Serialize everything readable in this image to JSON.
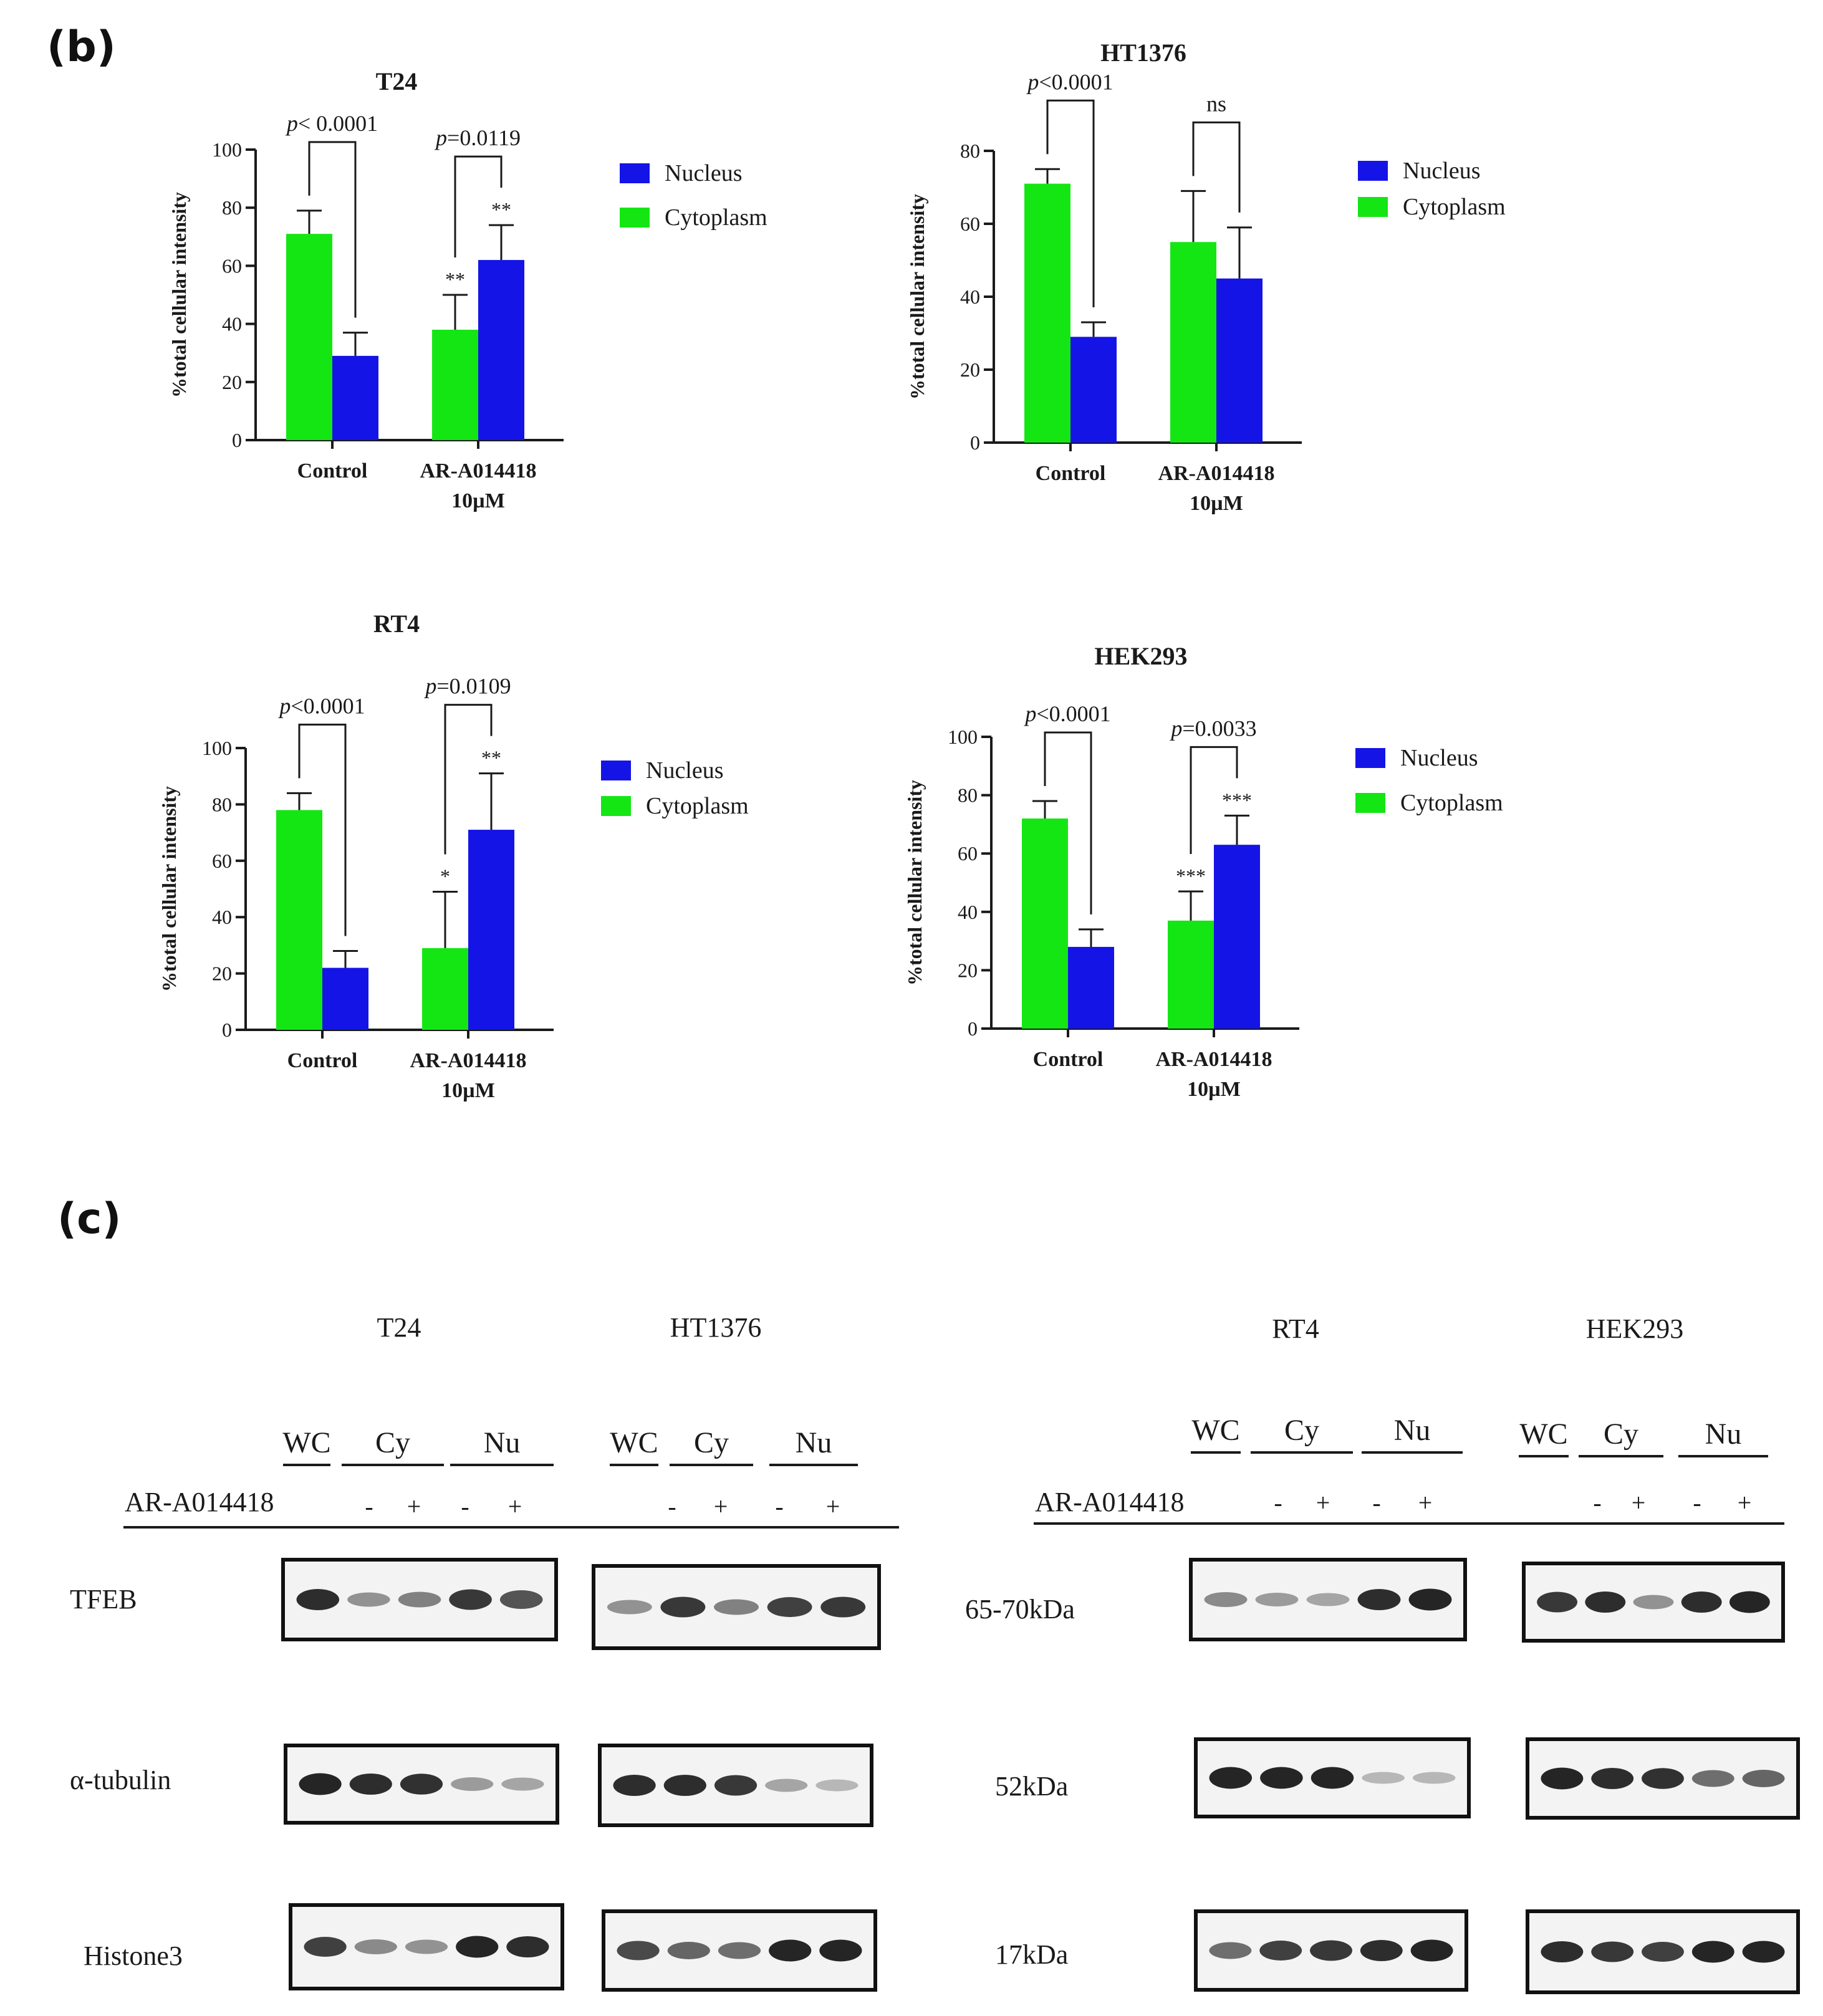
{
  "panels": {
    "b": "(b)",
    "c": "(c)"
  },
  "colors": {
    "nucleus": "#1414e6",
    "cytoplasm": "#14e614",
    "axis": "#1a1a1a",
    "blot_bg": "#f3f3f3",
    "band": "#1c1c1c"
  },
  "chart_data": [
    {
      "type": "bar",
      "title": "T24",
      "ylabel": "%total cellular intensity",
      "ylim": [
        0,
        100
      ],
      "yticks": [
        0,
        20,
        40,
        60,
        80,
        100
      ],
      "categories": [
        "Control",
        "AR-A014418\n10µM"
      ],
      "series": [
        {
          "name": "Cytoplasm",
          "values": [
            71,
            38
          ],
          "errors": [
            8,
            12
          ]
        },
        {
          "name": "Nucleus",
          "values": [
            29,
            62
          ],
          "errors": [
            8,
            12
          ]
        }
      ],
      "legend": [
        "Nucleus",
        "Cytoplasm"
      ],
      "comparisons": [
        "p< 0.0001",
        "p=0.0119"
      ],
      "stars": {
        "Cytoplasm": [
          "",
          "**"
        ],
        "Nucleus": [
          "",
          "**"
        ]
      }
    },
    {
      "type": "bar",
      "title": "HT1376",
      "ylabel": "%total cellular intensity",
      "ylim": [
        0,
        80
      ],
      "yticks": [
        0,
        20,
        40,
        60,
        80
      ],
      "categories": [
        "Control",
        "AR-A014418\n10µM"
      ],
      "series": [
        {
          "name": "Cytoplasm",
          "values": [
            71,
            55
          ],
          "errors": [
            4,
            14
          ]
        },
        {
          "name": "Nucleus",
          "values": [
            29,
            45
          ],
          "errors": [
            4,
            14
          ]
        }
      ],
      "legend": [
        "Nucleus",
        "Cytoplasm"
      ],
      "comparisons": [
        "p<0.0001",
        "ns"
      ],
      "stars": {
        "Cytoplasm": [
          "",
          ""
        ],
        "Nucleus": [
          "",
          ""
        ]
      }
    },
    {
      "type": "bar",
      "title": "RT4",
      "ylabel": "%total cellular intensity",
      "ylim": [
        0,
        100
      ],
      "yticks": [
        0,
        20,
        40,
        60,
        80,
        100
      ],
      "categories": [
        "Control",
        "AR-A014418\n10µM"
      ],
      "series": [
        {
          "name": "Cytoplasm",
          "values": [
            78,
            29
          ],
          "errors": [
            6,
            20
          ]
        },
        {
          "name": "Nucleus",
          "values": [
            22,
            71
          ],
          "errors": [
            6,
            20
          ]
        }
      ],
      "legend": [
        "Nucleus",
        "Cytoplasm"
      ],
      "comparisons": [
        "p<0.0001",
        "p=0.0109"
      ],
      "stars": {
        "Cytoplasm": [
          "",
          "*"
        ],
        "Nucleus": [
          "",
          "**"
        ]
      }
    },
    {
      "type": "bar",
      "title": "HEK293",
      "ylabel": "%total cellular intensity",
      "ylim": [
        0,
        100
      ],
      "yticks": [
        0,
        20,
        40,
        60,
        80,
        100
      ],
      "categories": [
        "Control",
        "AR-A014418\n10µM"
      ],
      "series": [
        {
          "name": "Cytoplasm",
          "values": [
            72,
            37
          ],
          "errors": [
            6,
            10
          ]
        },
        {
          "name": "Nucleus",
          "values": [
            28,
            63
          ],
          "errors": [
            6,
            10
          ]
        }
      ],
      "legend": [
        "Nucleus",
        "Cytoplasm"
      ],
      "comparisons": [
        "p<0.0001",
        "p=0.0033"
      ],
      "stars": {
        "Cytoplasm": [
          "",
          "***"
        ],
        "Nucleus": [
          "",
          "***"
        ]
      }
    }
  ],
  "westerns": {
    "treatment_label": "AR-A014418",
    "fraction_labels": [
      "WC",
      "Cy",
      "Nu"
    ],
    "signs": [
      "-",
      "+",
      "-",
      "+"
    ],
    "cell_lines": [
      "T24",
      "HT1376",
      "RT4",
      "HEK293"
    ],
    "row_labels": [
      "TFEB",
      "α-tubulin",
      "Histone3"
    ],
    "mw_labels": [
      "65-70kDa",
      "52kDa",
      "17kDa"
    ],
    "bands": {
      "T24": [
        [
          0.9,
          0.35,
          0.45,
          0.85,
          0.7
        ],
        [
          0.95,
          0.9,
          0.88,
          0.3,
          0.25
        ],
        [
          0.8,
          0.4,
          0.35,
          0.95,
          0.9
        ]
      ],
      "HT1376": [
        [
          0.35,
          0.85,
          0.45,
          0.8,
          0.85
        ],
        [
          0.9,
          0.9,
          0.85,
          0.25,
          0.15
        ],
        [
          0.75,
          0.6,
          0.55,
          0.95,
          0.95
        ]
      ],
      "RT4": [
        [
          0.4,
          0.3,
          0.25,
          0.9,
          0.95
        ],
        [
          0.95,
          0.95,
          0.95,
          0.15,
          0.15
        ],
        [
          0.55,
          0.8,
          0.85,
          0.9,
          0.95
        ]
      ],
      "HEK293": [
        [
          0.85,
          0.9,
          0.35,
          0.9,
          0.95
        ],
        [
          0.95,
          0.9,
          0.88,
          0.55,
          0.6
        ],
        [
          0.9,
          0.85,
          0.8,
          0.95,
          0.95
        ]
      ]
    }
  }
}
